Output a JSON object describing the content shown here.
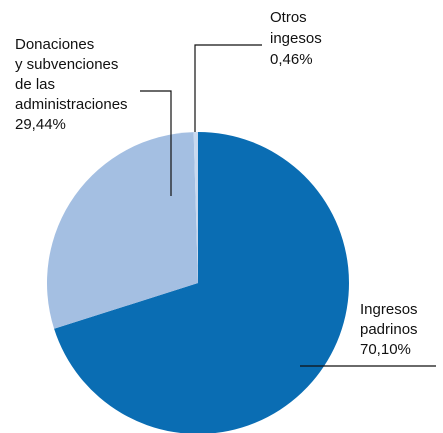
{
  "chart_data": {
    "type": "pie",
    "categories": [
      [
        "Ingresos",
        "padrinos"
      ],
      [
        "Donaciones",
        "y subvenciones",
        "de las",
        "administraciones"
      ],
      [
        "Otros",
        "ingesos"
      ]
    ],
    "values": [
      70.1,
      29.44,
      0.46
    ],
    "value_labels": [
      "70,10%",
      "29,44%",
      "0,46%"
    ],
    "colors": [
      "#0a6db3",
      "#a4bfe2",
      "#c9d9ef"
    ]
  }
}
